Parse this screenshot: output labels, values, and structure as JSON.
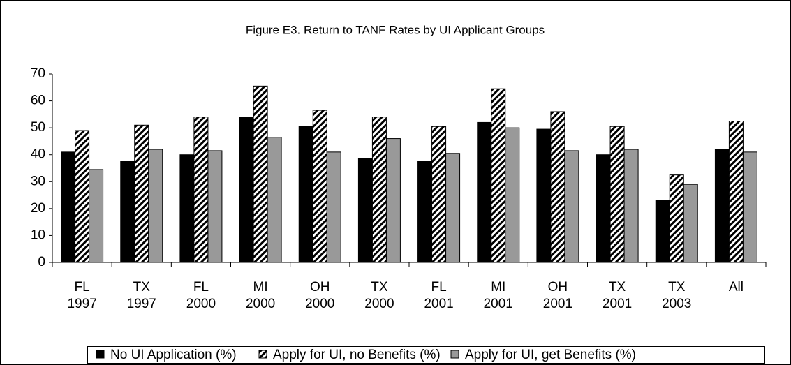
{
  "chart_data": {
    "type": "bar",
    "title": "Figure E3.  Return to TANF Rates by UI Applicant Groups",
    "categories": [
      "FL 1997",
      "TX 1997",
      "FL 2000",
      "MI 2000",
      "OH 2000",
      "TX 2000",
      "FL 2001",
      "MI 2001",
      "OH 2001",
      "TX 2001",
      "TX 2003",
      "All"
    ],
    "series": [
      {
        "name": "No UI Application (%)",
        "color": "#000000",
        "values": [
          41,
          37.5,
          40,
          54,
          50.5,
          38.5,
          37.5,
          52,
          49.5,
          40,
          23,
          42
        ]
      },
      {
        "name": "Apply for UI, no Benefits (%)",
        "color": "#ffffff",
        "pattern": "diagonal",
        "values": [
          49,
          51,
          54,
          65.5,
          56.5,
          54,
          50.5,
          64.5,
          56,
          50.5,
          32.5,
          52.5
        ]
      },
      {
        "name": "Apply for UI, get Benefits (%)",
        "color": "#999999",
        "values": [
          34.5,
          42,
          41.5,
          46.5,
          41,
          46,
          40.5,
          50,
          41.5,
          42,
          29,
          41
        ]
      }
    ],
    "ylim": [
      0,
      70
    ],
    "yticks": [
      0,
      10,
      20,
      30,
      40,
      50,
      60,
      70
    ],
    "grid": false,
    "legend": "bottom"
  }
}
